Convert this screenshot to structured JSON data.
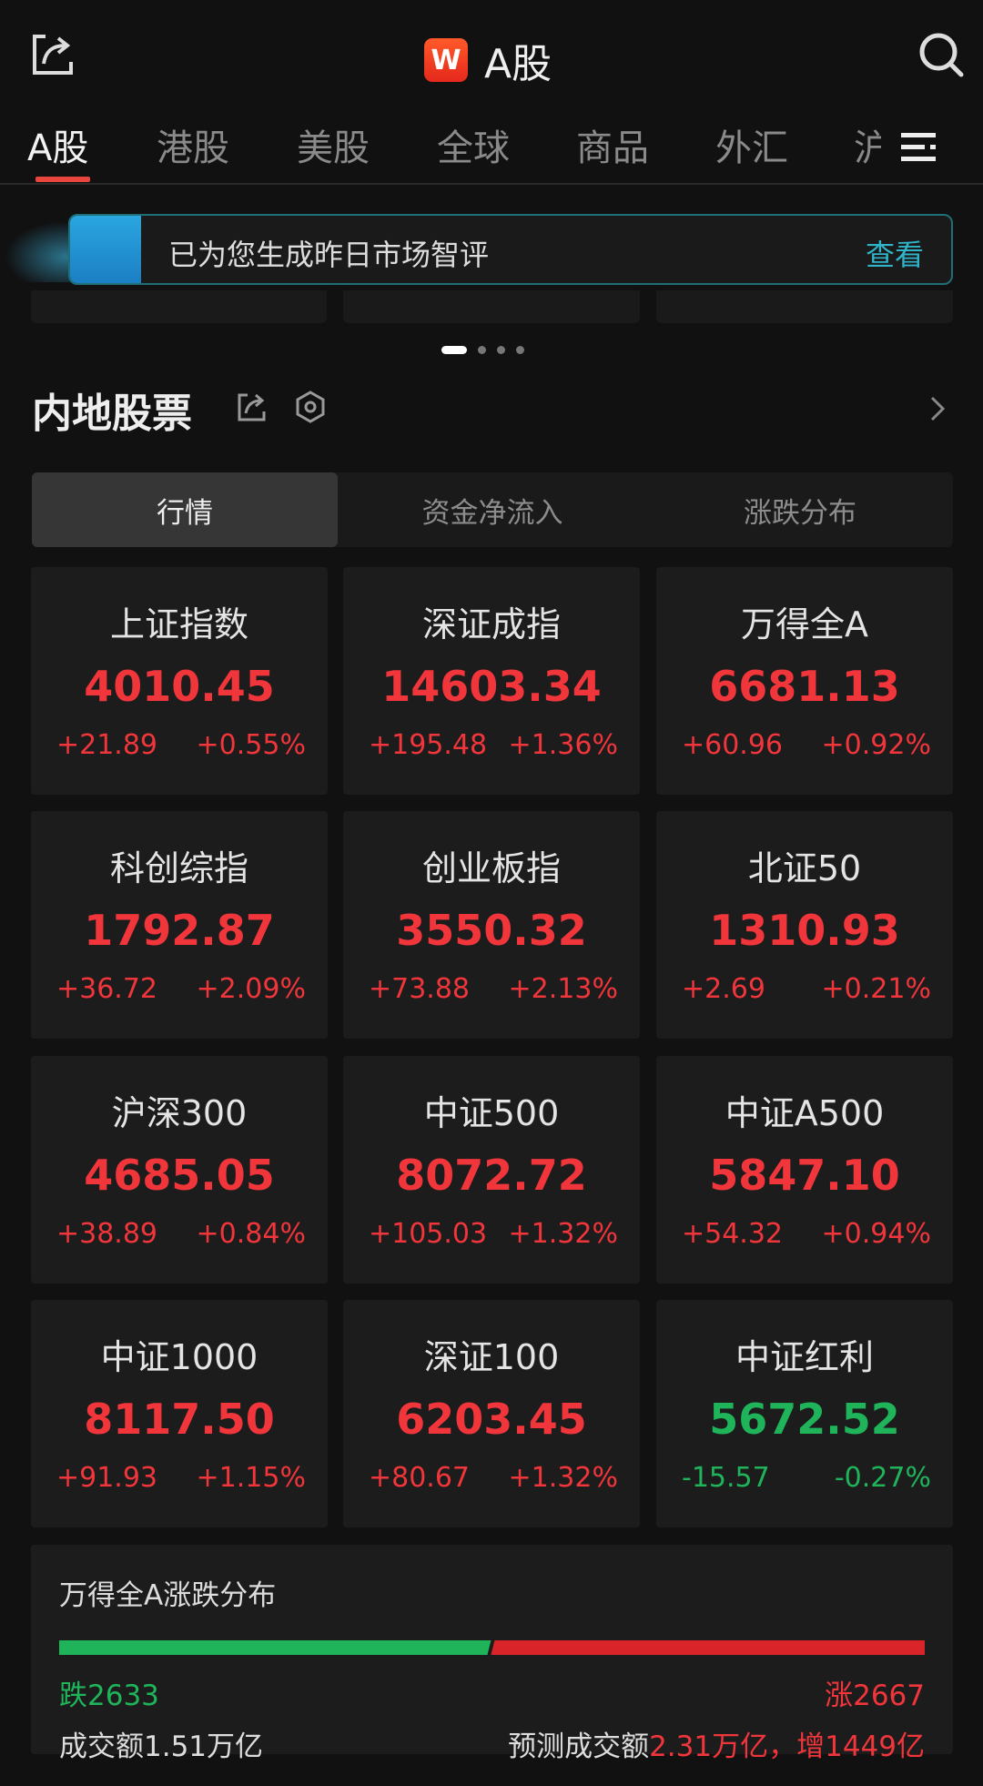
{
  "header": {
    "title": "A股",
    "logo_letter": "W",
    "share_icon": "share-icon",
    "search_icon": "search-icon"
  },
  "tabs": [
    {
      "label": "A股",
      "active": true
    },
    {
      "label": "港股"
    },
    {
      "label": "美股"
    },
    {
      "label": "全球"
    },
    {
      "label": "商品"
    },
    {
      "label": "外汇"
    },
    {
      "label": "沪"
    }
  ],
  "banner": {
    "text": "已为您生成昨日市场智评",
    "link": "查看"
  },
  "carousel": {
    "pages": 4,
    "active": 0
  },
  "section": {
    "title": "内地股票"
  },
  "segments": [
    {
      "label": "行情",
      "active": true
    },
    {
      "label": "资金净流入"
    },
    {
      "label": "涨跌分布"
    }
  ],
  "colors": {
    "up": "#f0353b",
    "down": "#1fb45a",
    "accent": "#e8453c",
    "link": "#2fb4c9"
  },
  "indices": [
    {
      "name": "上证指数",
      "price": "4010.45",
      "change": "+21.89",
      "pct": "+0.55%",
      "dir": "up"
    },
    {
      "name": "深证成指",
      "price": "14603.34",
      "change": "+195.48",
      "pct": "+1.36%",
      "dir": "up"
    },
    {
      "name": "万得全A",
      "price": "6681.13",
      "change": "+60.96",
      "pct": "+0.92%",
      "dir": "up"
    },
    {
      "name": "科创综指",
      "price": "1792.87",
      "change": "+36.72",
      "pct": "+2.09%",
      "dir": "up"
    },
    {
      "name": "创业板指",
      "price": "3550.32",
      "change": "+73.88",
      "pct": "+2.13%",
      "dir": "up"
    },
    {
      "name": "北证50",
      "price": "1310.93",
      "change": "+2.69",
      "pct": "+0.21%",
      "dir": "up"
    },
    {
      "name": "沪深300",
      "price": "4685.05",
      "change": "+38.89",
      "pct": "+0.84%",
      "dir": "up"
    },
    {
      "name": "中证500",
      "price": "8072.72",
      "change": "+105.03",
      "pct": "+1.32%",
      "dir": "up"
    },
    {
      "name": "中证A500",
      "price": "5847.10",
      "change": "+54.32",
      "pct": "+0.94%",
      "dir": "up"
    },
    {
      "name": "中证1000",
      "price": "8117.50",
      "change": "+91.93",
      "pct": "+1.15%",
      "dir": "up"
    },
    {
      "name": "深证100",
      "price": "6203.45",
      "change": "+80.67",
      "pct": "+1.32%",
      "dir": "up"
    },
    {
      "name": "中证红利",
      "price": "5672.52",
      "change": "-15.57",
      "pct": "-0.27%",
      "dir": "down"
    }
  ],
  "distribution": {
    "title": "万得全A涨跌分布",
    "fall_label": "跌2633",
    "rise_label": "涨2667",
    "fall": 2633,
    "rise": 2667,
    "volume": "成交额1.51万亿",
    "forecast_label": "预测成交额",
    "forecast_value": "2.31万亿，增1449亿"
  }
}
